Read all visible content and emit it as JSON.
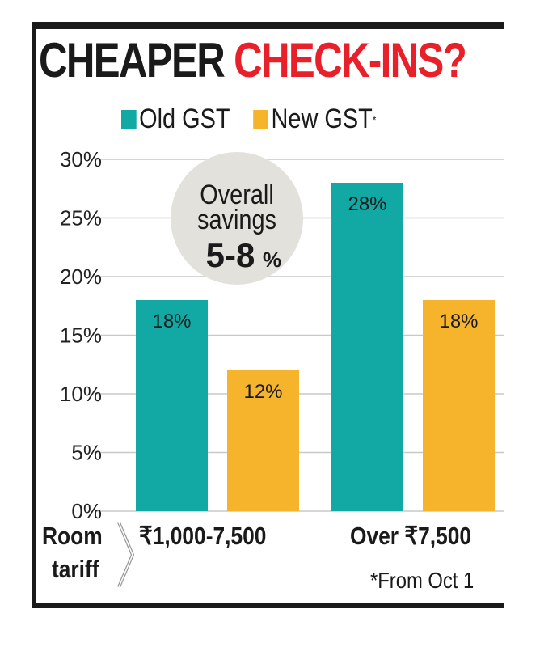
{
  "chart_data": {
    "type": "bar",
    "title_part1": "CHEAPER",
    "title_part2": "CHECK-INS?",
    "xlabel": "Room tariff",
    "xlabel_line1": "Room",
    "xlabel_line2": "tariff",
    "categories": [
      "₹1,000-7,500",
      "Over ₹7,500"
    ],
    "series": [
      {
        "name": "Old GST",
        "values": [
          18,
          28
        ],
        "color": "#12a8a4"
      },
      {
        "name": "New GST*",
        "values": [
          12,
          18
        ],
        "color": "#f6b42c"
      }
    ],
    "legend": {
      "old": "Old GST",
      "new": "New GST",
      "new_mark": "*"
    },
    "data_labels": [
      [
        "18%",
        "28%"
      ],
      [
        "12%",
        "18%"
      ]
    ],
    "yticks": [
      "0%",
      "5%",
      "10%",
      "15%",
      "20%",
      "25%",
      "30%"
    ],
    "ylim": [
      0,
      30
    ],
    "grid": true,
    "legend_placement": "top",
    "annotation": {
      "line1": "Overall",
      "line2": "savings",
      "line3": "5-8",
      "line3_unit": "%"
    },
    "footnote": "*From Oct 1",
    "colors": {
      "title_accent": "#e8202a",
      "bubble": "#e3e1dc"
    }
  }
}
